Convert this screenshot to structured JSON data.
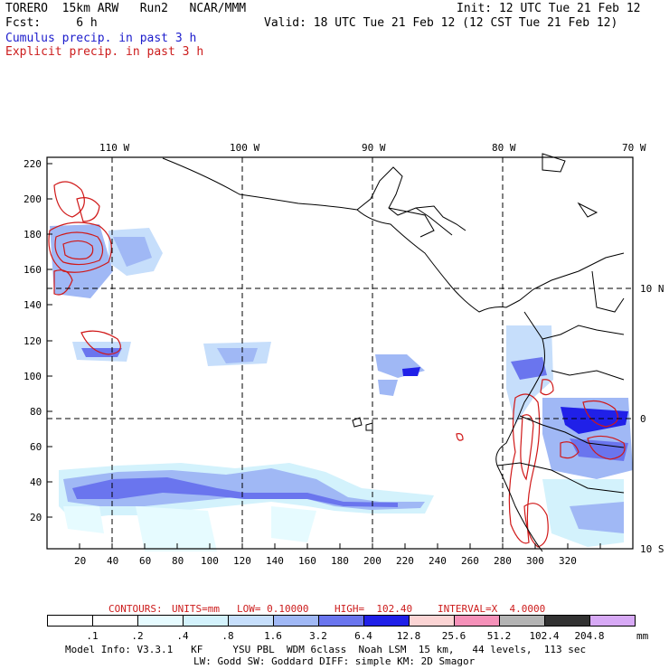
{
  "header": {
    "line1_left": "TORERO  15km ARW   Run2   NCAR/MMM",
    "line1_right": "Init: 12 UTC Tue 21 Feb 12",
    "line2_left": "Fcst:     6 h",
    "line2_right": "Valid: 18 UTC Tue 21 Feb 12 (12 CST Tue 21 Feb 12)",
    "legend_cumulus": "Cumulus precip. in past 3 h",
    "legend_explicit": "Explicit precip. in past 3 h"
  },
  "map": {
    "top_lon_labels": [
      "110 W",
      "100 W",
      "90 W",
      "80 W",
      "70 W"
    ],
    "right_lat_labels": [
      "10 N",
      "0",
      "10 S"
    ],
    "left_y_ticks": [
      "220",
      "200",
      "180",
      "160",
      "140",
      "120",
      "100",
      "80",
      "60",
      "40",
      "20"
    ],
    "bottom_x_ticks": [
      "20",
      "40",
      "60",
      "80",
      "100",
      "120",
      "140",
      "160",
      "180",
      "200",
      "220",
      "240",
      "260",
      "280",
      "300",
      "320"
    ]
  },
  "contour_info": {
    "contours": "CONTOURS:",
    "units": "UNITS=mm",
    "low": "LOW= 0.10000",
    "high": "HIGH=  102.40",
    "interval": "INTERVAL=X  4.0000"
  },
  "colorbar": {
    "labels": [
      ".1",
      ".2",
      ".4",
      ".8",
      "1.6",
      "3.2",
      "6.4",
      "12.8",
      "25.6",
      "51.2",
      "102.4",
      "204.8"
    ],
    "unit": "mm",
    "colors": [
      "#ffffff",
      "#ffffff",
      "#e6fbff",
      "#d3f2fc",
      "#c6defb",
      "#a0b8f5",
      "#6a75ee",
      "#2020e8",
      "#fbd4d4",
      "#f591b9",
      "#b4b4b4",
      "#323232",
      "#d7a9f5"
    ]
  },
  "footer": {
    "line1": "Model Info: V3.3.1   KF     YSU PBL  WDM 6class  Noah LSM  15 km,   44 levels,  113 sec",
    "line2": "LW: Godd SW: Goddard DIFF: simple KM: 2D Smagor"
  }
}
